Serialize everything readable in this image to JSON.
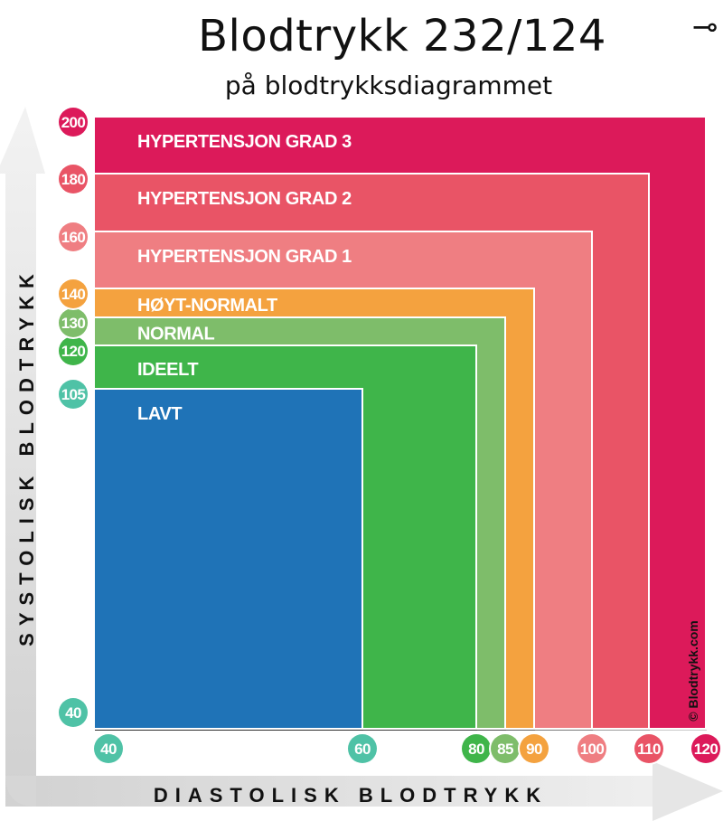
{
  "header": {
    "title": "Blodtrykk 232/124",
    "subtitle": "på blodtrykksdiagrammet",
    "corner_glyph": "⊸"
  },
  "chart_data": {
    "type": "area",
    "xlabel": "DIASTOLISK BLODTRYKK",
    "ylabel": "SYSTOLISK BLODTRYKK",
    "watermark": "© Blodtrykk.com",
    "x_ticks": [
      {
        "value": 40,
        "label": "40",
        "color": "#4fc2a6"
      },
      {
        "value": 60,
        "label": "60",
        "color": "#4fc2a6"
      },
      {
        "value": 80,
        "label": "80",
        "color": "#3fb54a"
      },
      {
        "value": 85,
        "label": "85",
        "color": "#7ebd6a"
      },
      {
        "value": 90,
        "label": "90",
        "color": "#f4a23f"
      },
      {
        "value": 100,
        "label": "100",
        "color": "#ef7e82"
      },
      {
        "value": 110,
        "label": "110",
        "color": "#e95466"
      },
      {
        "value": 120,
        "label": "120",
        "color": "#dc1a5a"
      }
    ],
    "y_ticks": [
      {
        "value": 40,
        "label": "40",
        "color": "#4fc2a6"
      },
      {
        "value": 105,
        "label": "105",
        "color": "#4fc2a6"
      },
      {
        "value": 120,
        "label": "120",
        "color": "#3fb54a"
      },
      {
        "value": 130,
        "label": "130",
        "color": "#7ebd6a"
      },
      {
        "value": 140,
        "label": "140",
        "color": "#f4a23f"
      },
      {
        "value": 160,
        "label": "160",
        "color": "#ef7e82"
      },
      {
        "value": 180,
        "label": "180",
        "color": "#e95466"
      },
      {
        "value": 200,
        "label": "200",
        "color": "#dc1a5a"
      }
    ],
    "categories": [
      {
        "name": "HYPERTENSJON GRAD 3",
        "diastolic_max": 120,
        "systolic_max": 200,
        "color": "#dc1a5a"
      },
      {
        "name": "HYPERTENSJON GRAD 2",
        "diastolic_max": 110,
        "systolic_max": 180,
        "color": "#e95466"
      },
      {
        "name": "HYPERTENSJON GRAD 1",
        "diastolic_max": 100,
        "systolic_max": 160,
        "color": "#ef7e82"
      },
      {
        "name": "HØYT-NORMALT",
        "diastolic_max": 90,
        "systolic_max": 140,
        "color": "#f4a23f"
      },
      {
        "name": "NORMAL",
        "diastolic_max": 85,
        "systolic_max": 130,
        "color": "#7ebd6a"
      },
      {
        "name": "IDEELT",
        "diastolic_max": 80,
        "systolic_max": 120,
        "color": "#3fb54a"
      },
      {
        "name": "LAVT",
        "diastolic_max": 60,
        "systolic_max": 105,
        "color": "#1f73b7"
      }
    ]
  }
}
